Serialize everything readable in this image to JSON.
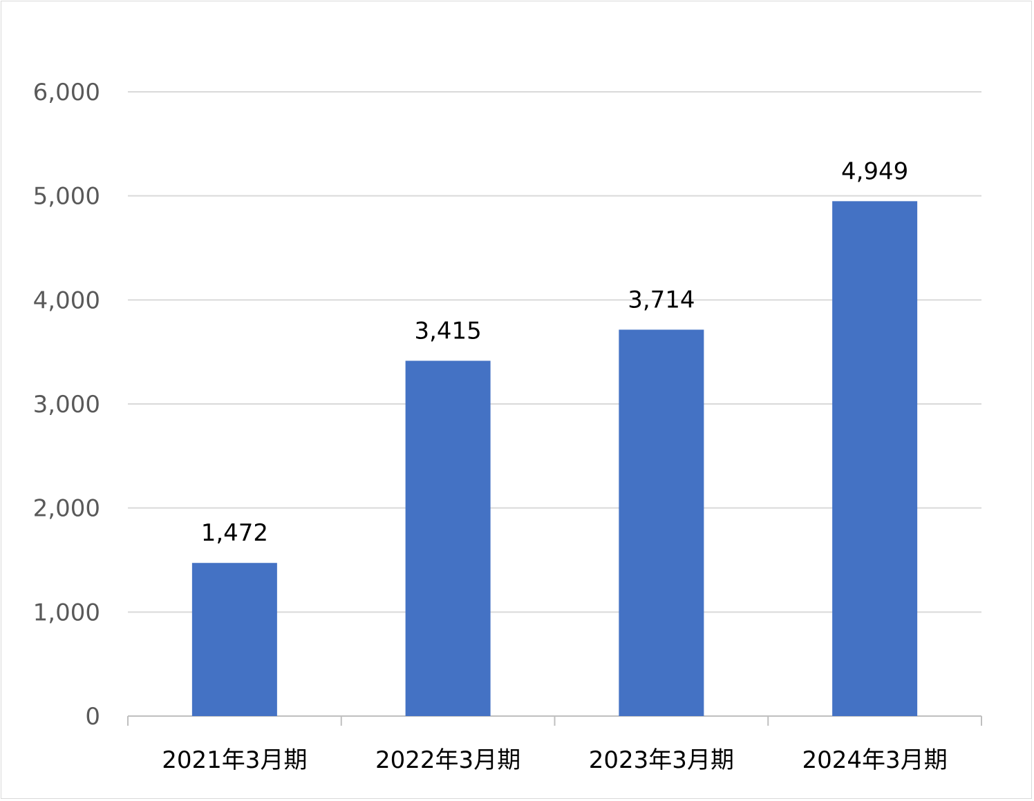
{
  "chart_data": {
    "type": "bar",
    "categories": [
      "2021年3月期",
      "2022年3月期",
      "2023年3月期",
      "2024年3月期"
    ],
    "values": [
      1472,
      3415,
      3714,
      4949
    ],
    "value_labels": [
      "1,472",
      "3,415",
      "3,714",
      "4,949"
    ],
    "ylim": [
      0,
      6000
    ],
    "yticks": [
      0,
      1000,
      2000,
      3000,
      4000,
      5000,
      6000
    ],
    "ytick_labels": [
      "0",
      "1,000",
      "2,000",
      "3,000",
      "4,000",
      "5,000",
      "6,000"
    ],
    "grid": true,
    "legend": "none",
    "colors": {
      "bar": "#4472C4",
      "grid": "#d9d9d9",
      "axis": "#bfbfbf",
      "tick_text": "#595959",
      "label_text": "#000000"
    }
  }
}
